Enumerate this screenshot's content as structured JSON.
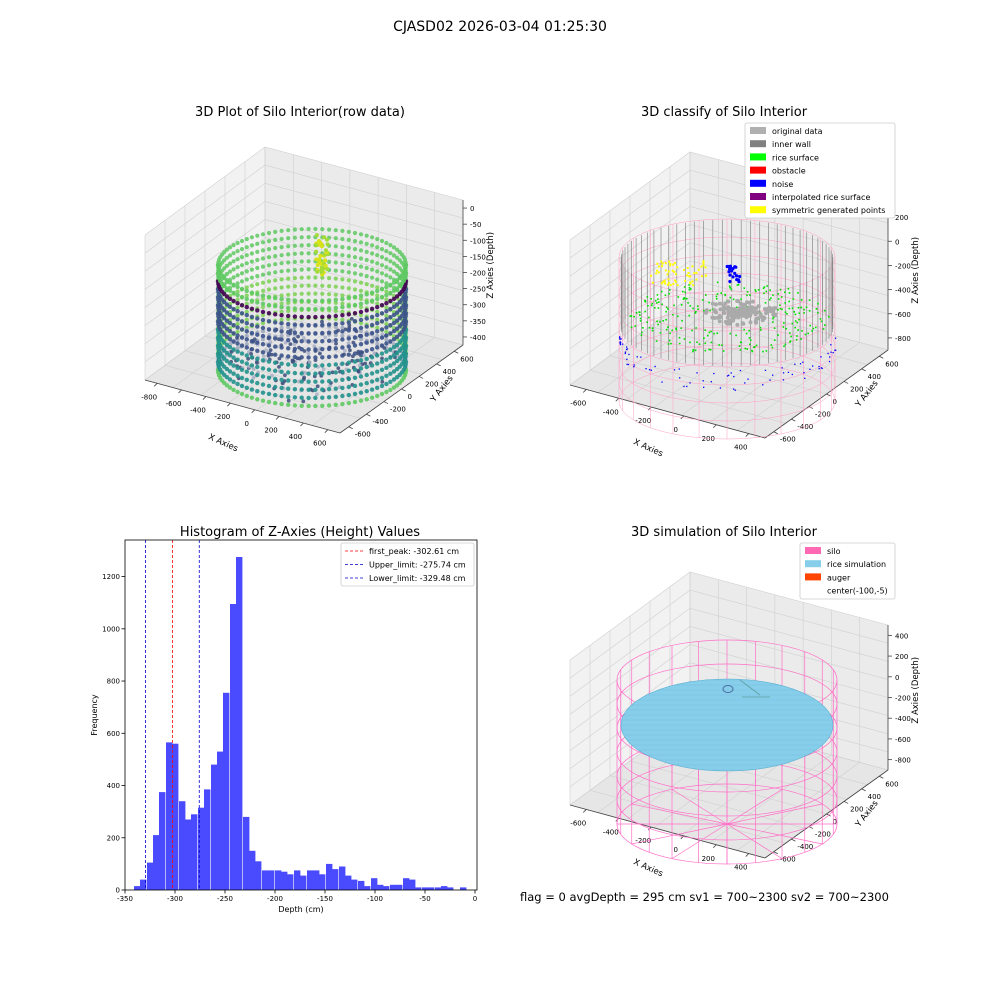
{
  "figure": {
    "suptitle": "CJASD02 2026-03-04 01:25:30",
    "status": "flag = 0     avgDepth = 295 cm  sv1 = 700~2300  sv2 = 700~2300"
  },
  "chart_data": [
    {
      "type": "scatter",
      "title": "3D Plot of Silo Interior(row data)",
      "xlabel": "X Axies",
      "ylabel": "Y Axies",
      "zlabel": "Z Axies (Depth)",
      "xticks": [
        "-800",
        "-600",
        "-400",
        "-200",
        "0",
        "200",
        "400",
        "600"
      ],
      "yticks": [
        "-600",
        "-400",
        "-200",
        "0",
        "200",
        "400",
        "600"
      ],
      "zticks": [
        "0",
        "-50",
        "-100",
        "-150",
        "-200",
        "-250",
        "-300",
        "-350",
        "-400"
      ],
      "colormap": "viridis",
      "grid": true
    },
    {
      "type": "scatter",
      "title": "3D classify of Silo Interior",
      "xlabel": "X Axies",
      "ylabel": "Y Axies",
      "zlabel": "Z Axies (Depth)",
      "xticks": [
        "-600",
        "-400",
        "-200",
        "0",
        "200",
        "400"
      ],
      "yticks": [
        "-600",
        "-400",
        "-200",
        "0",
        "200",
        "400",
        "600"
      ],
      "zticks": [
        "200",
        "0",
        "-200",
        "-400",
        "-600",
        "-800"
      ],
      "zticks_top_partial": "00",
      "legend_position": "upper right",
      "legend": [
        {
          "label": "original data",
          "color": "#b0b0b0"
        },
        {
          "label": "inner wall",
          "color": "#808080"
        },
        {
          "label": "rice surface",
          "color": "#00ff00"
        },
        {
          "label": "obstacle",
          "color": "#ff0000"
        },
        {
          "label": "noise",
          "color": "#0000ff"
        },
        {
          "label": "interpolated rice surface",
          "color": "#800080"
        },
        {
          "label": "symmetric generated points",
          "color": "#ffff00"
        }
      ],
      "grid": true
    },
    {
      "type": "bar",
      "title": "Histogram of Z-Axies (Height) Values",
      "xlabel": "Depth (cm)",
      "ylabel": "Frequency",
      "xlim": [
        -350,
        2
      ],
      "ylim": [
        0,
        1340
      ],
      "xticks": [
        -350,
        -300,
        -250,
        -200,
        -150,
        -100,
        -50,
        0
      ],
      "yticks": [
        0,
        200,
        400,
        600,
        800,
        1000,
        1200
      ],
      "bar_color": "#4a4aff",
      "bins_left": [
        -341,
        -335,
        -328,
        -322,
        -316,
        -309,
        -303,
        -296,
        -290,
        -284,
        -277,
        -271,
        -264,
        -258,
        -252,
        -245,
        -239,
        -232,
        -226,
        -220,
        -213,
        -207,
        -200,
        -194,
        -188,
        -181,
        -175,
        -168,
        -162,
        -156,
        -149,
        -143,
        -136,
        -130,
        -124,
        -117,
        -111,
        -104,
        -98,
        -92,
        -85,
        -79,
        -72,
        -66,
        -60,
        -53,
        -47,
        -40,
        -34,
        -28,
        -21,
        -15,
        -8
      ],
      "bin_width": 6.4,
      "values": [
        15,
        40,
        105,
        210,
        375,
        565,
        560,
        340,
        270,
        290,
        315,
        385,
        480,
        530,
        755,
        1095,
        1275,
        280,
        150,
        110,
        75,
        75,
        75,
        70,
        60,
        75,
        55,
        75,
        75,
        60,
        100,
        80,
        90,
        55,
        40,
        35,
        15,
        45,
        20,
        15,
        20,
        20,
        45,
        40,
        10,
        10,
        10,
        10,
        15,
        10,
        0,
        10,
        0
      ],
      "vlines": [
        {
          "x": -302.61,
          "color": "#ff0000",
          "label": "first_peak: -302.61 cm"
        },
        {
          "x": -275.74,
          "color": "#0000cc",
          "label": "Upper_limit: -275.74 cm"
        },
        {
          "x": -329.48,
          "color": "#0000cc",
          "label": "Lower_limit: -329.48 cm"
        }
      ],
      "legend_position": "upper right",
      "grid": false
    },
    {
      "type": "scatter",
      "title": "3D simulation of Silo Interior",
      "xlabel": "X Axies",
      "ylabel": "Y Axies",
      "zlabel": "Z Axies (Depth)",
      "xticks": [
        "-600",
        "-400",
        "-200",
        "0",
        "200",
        "400"
      ],
      "yticks": [
        "-600",
        "-400",
        "-200",
        "0",
        "200",
        "400",
        "600"
      ],
      "zticks": [
        "400",
        "200",
        "0",
        "-200",
        "-400",
        "-600",
        "-800"
      ],
      "legend_position": "upper right",
      "legend": [
        {
          "label": "silo",
          "color": "#ff69b4"
        },
        {
          "label": "rice simulation",
          "color": "#87ceeb"
        },
        {
          "label": "auger",
          "color": "#ff4500"
        },
        {
          "label": "center(-100,-5)",
          "color": ""
        }
      ],
      "grid": true
    }
  ]
}
